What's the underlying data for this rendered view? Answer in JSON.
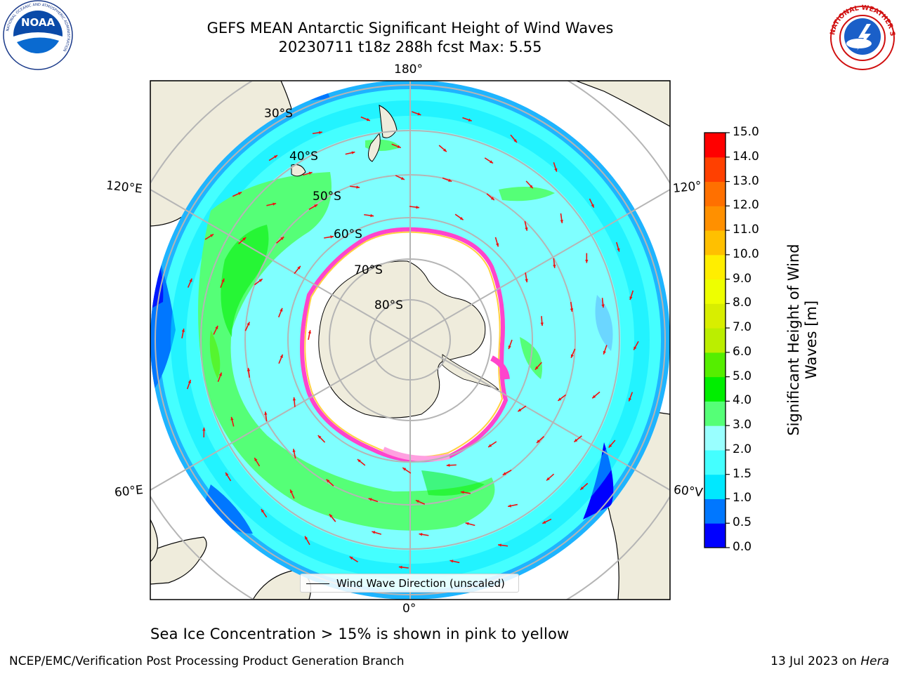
{
  "header": {
    "title_line1": "GEFS MEAN Antarctic Significant Height of Wind Waves",
    "title_line2": "20230711 t18z 288h fcst   Max: 5.55"
  },
  "logos": {
    "left": "noaa-logo",
    "left_text": "NOAA",
    "left_ring_text": "NATIONAL OCEANIC AND ATMOSPHERIC ADMINISTRATION",
    "left_bottom_text": "U.S. DEPARTMENT OF COMMERCE",
    "right": "nws-logo",
    "right_ring_text": "NATIONAL WEATHER SERVICE"
  },
  "map": {
    "projection": "south-polar-stereographic",
    "longitude_labels": {
      "top": "180°",
      "bottom": "0°",
      "upper_left": "120°E",
      "lower_left": "60°E",
      "upper_right": "120°",
      "lower_right": "60°V"
    },
    "latitude_labels": [
      "30°S",
      "40°S",
      "50°S",
      "60°S",
      "70°S",
      "80°S"
    ],
    "legend_label": "Wind Wave Direction (unscaled)",
    "arrow_color": "#ee1111",
    "land_color": "#efecdc",
    "ice_edge_colors": [
      "#ff44cc",
      "#ffd040",
      "#ffa0e0"
    ]
  },
  "colorbar": {
    "title": "Significant Height of Wind Waves [m]",
    "ticks": [
      "0.0",
      "0.5",
      "1.0",
      "1.5",
      "2.0",
      "3.0",
      "4.0",
      "5.0",
      "6.0",
      "7.0",
      "8.0",
      "9.0",
      "10.0",
      "11.0",
      "12.0",
      "13.0",
      "14.0",
      "15.0"
    ],
    "colors": [
      "#0000ff",
      "#0077ff",
      "#00e8ff",
      "#44ffff",
      "#99ffff",
      "#55ff77",
      "#00ee00",
      "#55ee00",
      "#bbee00",
      "#d8ee00",
      "#eeff00",
      "#ffee00",
      "#ffc000",
      "#ff9000",
      "#ff7000",
      "#ff4000",
      "#ff0000"
    ]
  },
  "notes": {
    "subtitle": "Sea Ice Concentration > 15% is shown in pink to yellow"
  },
  "footer": {
    "left": "NCEP/EMC/Verification Post Processing Product Generation Branch",
    "right_prefix": "13 Jul 2023 on ",
    "right_host": "Hera"
  }
}
